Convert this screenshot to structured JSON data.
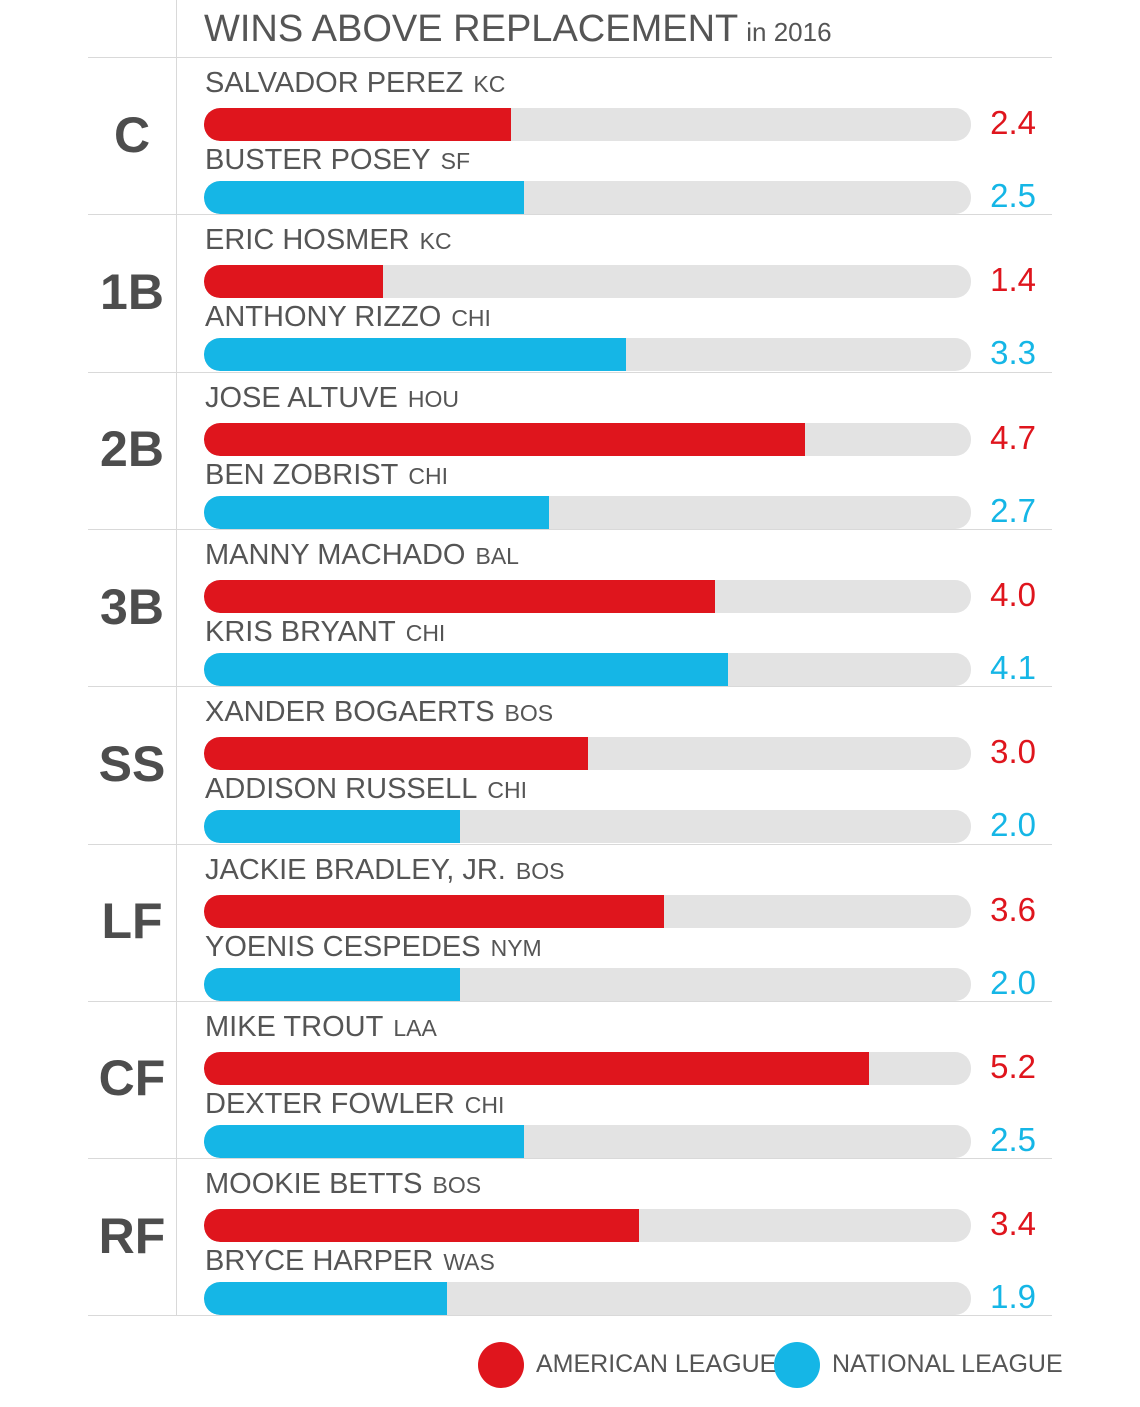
{
  "colors": {
    "american": "#df151d",
    "national": "#15b6e6",
    "track": "#e3e3e3"
  },
  "chart_data": {
    "type": "bar",
    "title": "WINS ABOVE REPLACEMENT",
    "subtitle": "in 2016",
    "xlim": [
      0,
      6
    ],
    "grid": false,
    "legend_position": "bottom-right",
    "legend": [
      {
        "name": "AMERICAN LEAGUE",
        "league": "american"
      },
      {
        "name": "NATIONAL LEAGUE",
        "league": "national"
      }
    ],
    "groups": [
      {
        "position": "C",
        "players": [
          {
            "name": "SALVADOR PEREZ",
            "team": "KC",
            "league": "american",
            "value": 2.4,
            "label": "2.4"
          },
          {
            "name": "BUSTER POSEY",
            "team": "SF",
            "league": "national",
            "value": 2.5,
            "label": "2.5"
          }
        ]
      },
      {
        "position": "1B",
        "players": [
          {
            "name": "ERIC HOSMER",
            "team": "KC",
            "league": "american",
            "value": 1.4,
            "label": "1.4"
          },
          {
            "name": "ANTHONY RIZZO",
            "team": "CHI",
            "league": "national",
            "value": 3.3,
            "label": "3.3"
          }
        ]
      },
      {
        "position": "2B",
        "players": [
          {
            "name": "JOSE ALTUVE",
            "team": "HOU",
            "league": "american",
            "value": 4.7,
            "label": "4.7"
          },
          {
            "name": "BEN ZOBRIST",
            "team": "CHI",
            "league": "national",
            "value": 2.7,
            "label": "2.7"
          }
        ]
      },
      {
        "position": "3B",
        "players": [
          {
            "name": "MANNY MACHADO",
            "team": "BAL",
            "league": "american",
            "value": 4.0,
            "label": "4.0"
          },
          {
            "name": "KRIS BRYANT",
            "team": "CHI",
            "league": "national",
            "value": 4.1,
            "label": "4.1"
          }
        ]
      },
      {
        "position": "SS",
        "players": [
          {
            "name": "XANDER BOGAERTS",
            "team": "BOS",
            "league": "american",
            "value": 3.0,
            "label": "3.0"
          },
          {
            "name": "ADDISON RUSSELL",
            "team": "CHI",
            "league": "national",
            "value": 2.0,
            "label": "2.0"
          }
        ]
      },
      {
        "position": "LF",
        "players": [
          {
            "name": "JACKIE BRADLEY, JR.",
            "team": "BOS",
            "league": "american",
            "value": 3.6,
            "label": "3.6"
          },
          {
            "name": "YOENIS CESPEDES",
            "team": "NYM",
            "league": "national",
            "value": 2.0,
            "label": "2.0"
          }
        ]
      },
      {
        "position": "CF",
        "players": [
          {
            "name": "MIKE TROUT",
            "team": "LAA",
            "league": "american",
            "value": 5.2,
            "label": "5.2"
          },
          {
            "name": "DEXTER FOWLER",
            "team": "CHI",
            "league": "national",
            "value": 2.5,
            "label": "2.5"
          }
        ]
      },
      {
        "position": "RF",
        "players": [
          {
            "name": "MOOKIE BETTS",
            "team": "BOS",
            "league": "american",
            "value": 3.4,
            "label": "3.4"
          },
          {
            "name": "BRYCE HARPER",
            "team": "WAS",
            "league": "national",
            "value": 1.9,
            "label": "1.9"
          }
        ]
      }
    ]
  }
}
